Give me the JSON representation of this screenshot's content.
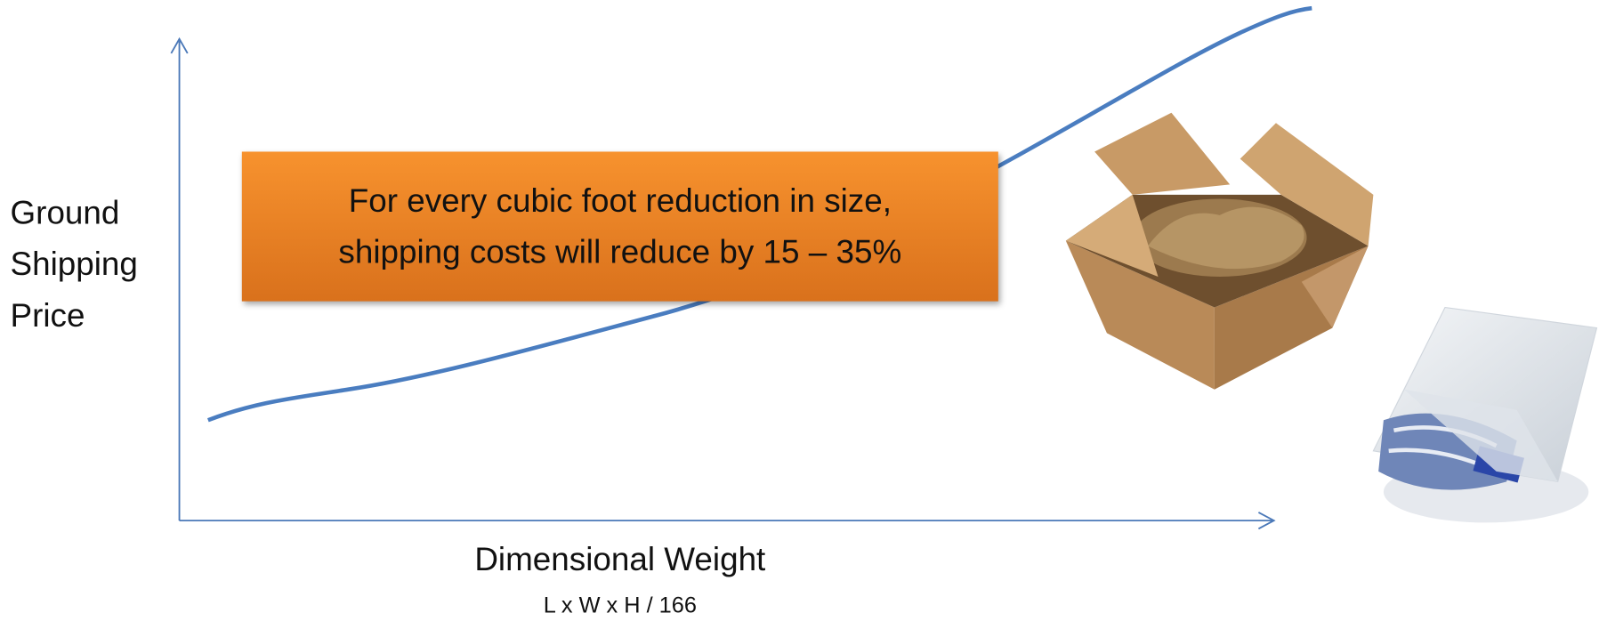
{
  "y_axis_label": [
    "Ground",
    "Shipping",
    "Price"
  ],
  "x_axis_label": "Dimensional Weight",
  "x_axis_sublabel": "L x W x H / 166",
  "callout": [
    "For every cubic foot reduction in size,",
    "shipping costs will reduce by 15 – 35%"
  ]
}
